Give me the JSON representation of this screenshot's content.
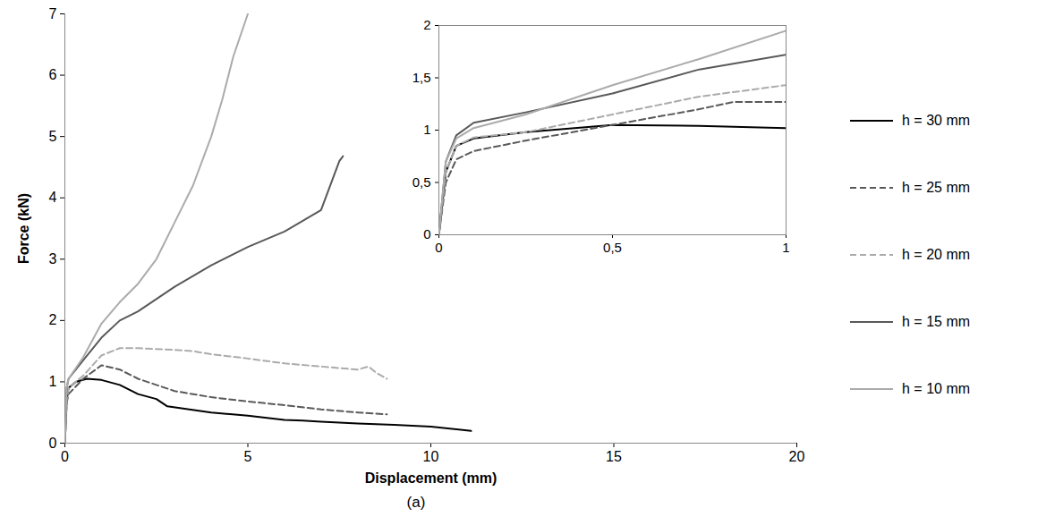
{
  "chart_data": [
    {
      "type": "line",
      "x_label": "Displacement (mm)",
      "y_label": "Force (kN)",
      "caption": "(a)",
      "xlim": [
        0,
        20
      ],
      "xticks": [
        0,
        5,
        10,
        15,
        20
      ],
      "ylim": [
        0,
        7
      ],
      "yticks": [
        0,
        1,
        2,
        3,
        4,
        5,
        6,
        7
      ],
      "grid": false,
      "legend": "right",
      "series": [
        {
          "name": "h = 30 mm",
          "color": "#000000",
          "line_style": "solid",
          "x": [
            0,
            0.05,
            0.1,
            0.3,
            0.6,
            1,
            1.5,
            2,
            2.5,
            2.8,
            4,
            5,
            6,
            6.5,
            7,
            8,
            9,
            10,
            11.1
          ],
          "values": [
            0,
            0.7,
            0.9,
            1.0,
            1.05,
            1.03,
            0.95,
            0.8,
            0.72,
            0.6,
            0.5,
            0.45,
            0.38,
            0.37,
            0.35,
            0.32,
            0.3,
            0.27,
            0.2
          ]
        },
        {
          "name": "h = 25 mm",
          "color": "#595959",
          "line_style": "dashed",
          "x": [
            0,
            0.05,
            0.1,
            0.5,
            1,
            1.5,
            2,
            3,
            4,
            5,
            6,
            7,
            8,
            8.8
          ],
          "values": [
            0,
            0.65,
            0.8,
            1.05,
            1.27,
            1.2,
            1.05,
            0.85,
            0.75,
            0.68,
            0.62,
            0.55,
            0.5,
            0.47
          ]
        },
        {
          "name": "h = 20 mm",
          "color": "#ababab",
          "line_style": "dashed",
          "x": [
            0,
            0.05,
            0.1,
            0.5,
            1,
            1.5,
            2,
            3,
            3.5,
            4,
            5,
            6,
            7,
            8,
            8.3,
            8.5,
            8.8
          ],
          "values": [
            0,
            0.7,
            0.9,
            1.1,
            1.43,
            1.55,
            1.55,
            1.52,
            1.5,
            1.45,
            1.38,
            1.3,
            1.25,
            1.2,
            1.25,
            1.15,
            1.05
          ]
        },
        {
          "name": "h = 15 mm",
          "color": "#595959",
          "line_style": "solid",
          "x": [
            0,
            0.05,
            0.1,
            0.5,
            1,
            1.5,
            2,
            3,
            4,
            5,
            6,
            7,
            7.5,
            7.6
          ],
          "values": [
            0,
            0.9,
            1.05,
            1.35,
            1.72,
            2.0,
            2.15,
            2.55,
            2.9,
            3.2,
            3.45,
            3.8,
            4.6,
            4.68
          ]
        },
        {
          "name": "h = 10 mm",
          "color": "#ababab",
          "line_style": "solid",
          "x": [
            0,
            0.05,
            0.1,
            0.5,
            1,
            1.5,
            2,
            2.5,
            3,
            3.5,
            4,
            4.3,
            4.6,
            5
          ],
          "values": [
            0,
            0.9,
            1.05,
            1.4,
            1.95,
            2.3,
            2.6,
            3.0,
            3.6,
            4.2,
            5.0,
            5.6,
            6.3,
            7.0
          ]
        }
      ]
    },
    {
      "type": "line",
      "xlim": [
        0,
        1
      ],
      "xticks": [
        0,
        {
          "value": 0.5,
          "label": "0,5"
        },
        1
      ],
      "ylim": [
        0,
        2
      ],
      "yticks": [
        0,
        {
          "value": 0.5,
          "label": "0,5"
        },
        1,
        {
          "value": 1.5,
          "label": "1,5"
        },
        2
      ],
      "grid": false,
      "series": [
        {
          "name": "h = 30 mm",
          "color": "#000000",
          "line_style": "solid",
          "x": [
            0,
            0.02,
            0.05,
            0.1,
            0.25,
            0.5,
            0.75,
            1
          ],
          "values": [
            0,
            0.6,
            0.85,
            0.92,
            0.98,
            1.05,
            1.04,
            1.02
          ]
        },
        {
          "name": "h = 25 mm",
          "color": "#595959",
          "line_style": "dashed",
          "x": [
            0,
            0.02,
            0.05,
            0.1,
            0.25,
            0.5,
            0.75,
            0.85,
            1
          ],
          "values": [
            0,
            0.5,
            0.72,
            0.8,
            0.9,
            1.05,
            1.2,
            1.27,
            1.27
          ]
        },
        {
          "name": "h = 20 mm",
          "color": "#ababab",
          "line_style": "dashed",
          "x": [
            0,
            0.02,
            0.05,
            0.1,
            0.25,
            0.5,
            0.75,
            1
          ],
          "values": [
            0,
            0.6,
            0.85,
            0.93,
            0.98,
            1.15,
            1.32,
            1.43
          ]
        },
        {
          "name": "h = 15 mm",
          "color": "#595959",
          "line_style": "solid",
          "x": [
            0,
            0.02,
            0.05,
            0.1,
            0.25,
            0.5,
            0.75,
            1
          ],
          "values": [
            0,
            0.7,
            0.95,
            1.07,
            1.17,
            1.35,
            1.58,
            1.72
          ]
        },
        {
          "name": "h = 10 mm",
          "color": "#ababab",
          "line_style": "solid",
          "x": [
            0,
            0.02,
            0.05,
            0.1,
            0.25,
            0.5,
            0.75,
            1
          ],
          "values": [
            0,
            0.7,
            0.92,
            1.02,
            1.15,
            1.43,
            1.68,
            1.95
          ]
        }
      ]
    }
  ]
}
